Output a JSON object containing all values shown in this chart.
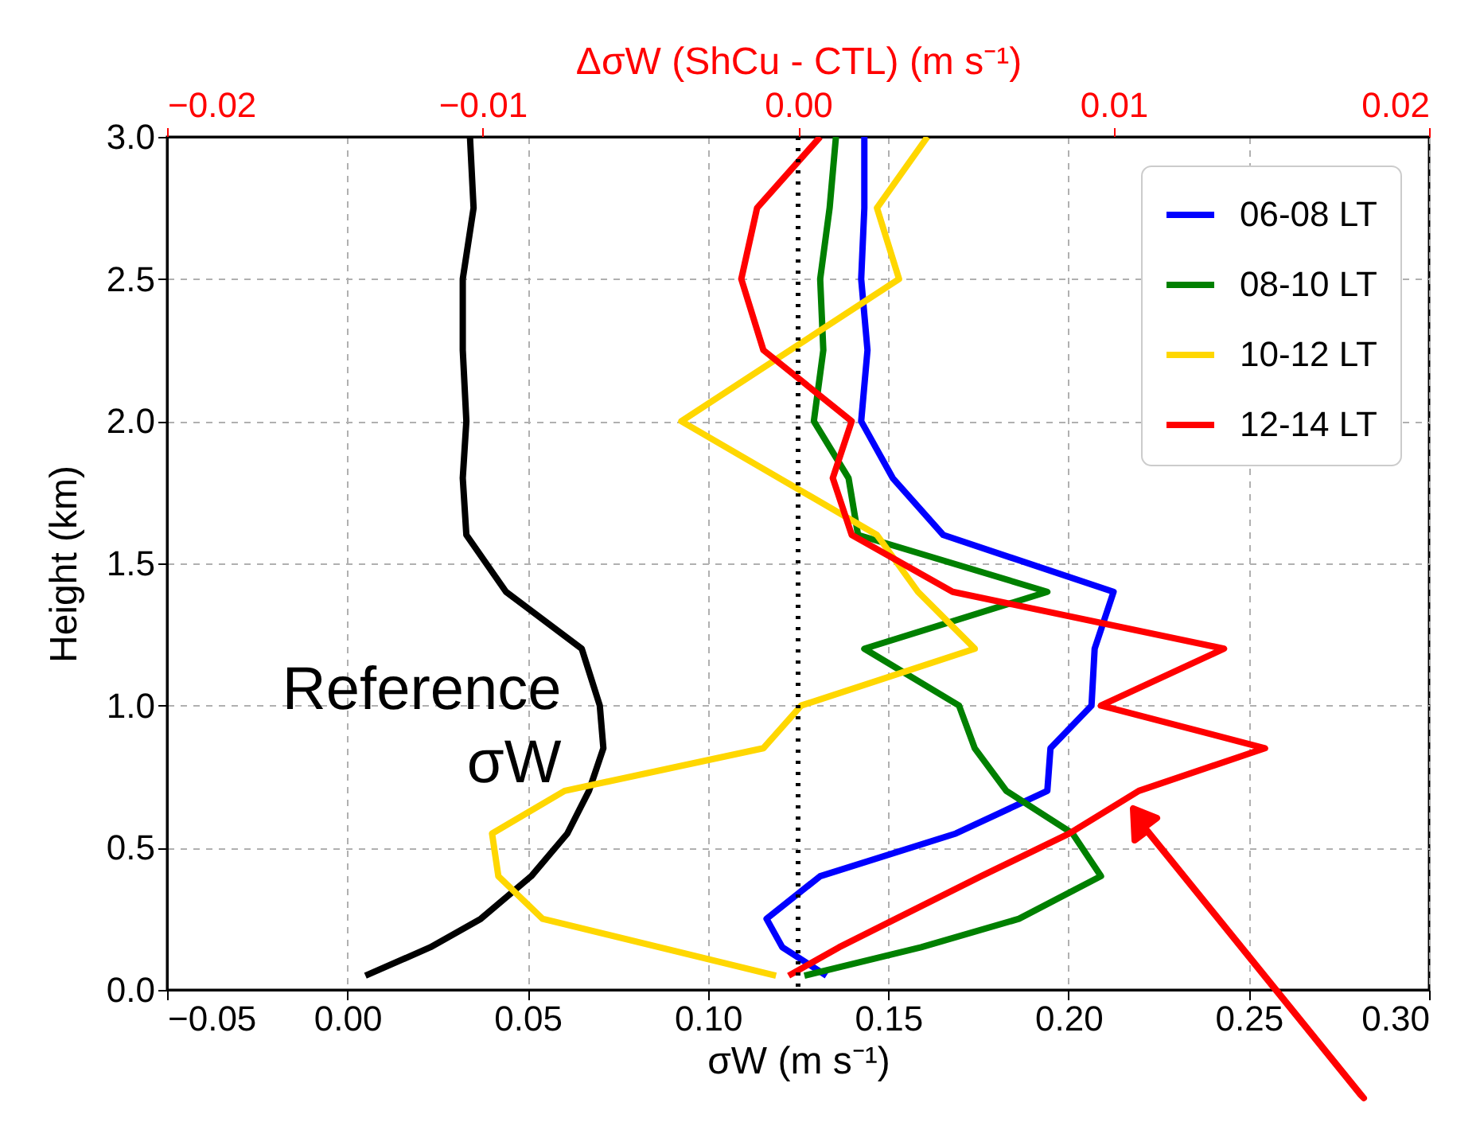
{
  "chart_data": {
    "type": "line",
    "xlabel": "σW (m s⁻¹)",
    "x2label": "ΔσW (ShCu - CTL) (m s⁻¹)",
    "ylabel": "Height (km)",
    "xlim": [
      -0.05,
      0.3
    ],
    "xticks": [
      {
        "value": -0.05,
        "label": "−0.05"
      },
      {
        "value": 0,
        "label": "0.00"
      },
      {
        "value": 0.05,
        "label": "0.05"
      },
      {
        "value": 0.1,
        "label": "0.10"
      },
      {
        "value": 0.15,
        "label": "0.15"
      },
      {
        "value": 0.2,
        "label": "0.20"
      },
      {
        "value": 0.25,
        "label": "0.25"
      },
      {
        "value": 0.3,
        "label": "0.30"
      }
    ],
    "x2lim": [
      -0.02,
      0.02
    ],
    "x2ticks": [
      {
        "value": -0.02,
        "label": "−0.02"
      },
      {
        "value": -0.01,
        "label": "−0.01"
      },
      {
        "value": 0,
        "label": "0.00"
      },
      {
        "value": 0.01,
        "label": "0.01"
      },
      {
        "value": 0.02,
        "label": "0.02"
      }
    ],
    "ylim": [
      0,
      3
    ],
    "yticks": [
      {
        "value": 0,
        "label": "0.0"
      },
      {
        "value": 0.5,
        "label": "0.5"
      },
      {
        "value": 1,
        "label": "1.0"
      },
      {
        "value": 1.5,
        "label": "1.5"
      },
      {
        "value": 2,
        "label": "2.0"
      },
      {
        "value": 2.5,
        "label": "2.5"
      },
      {
        "value": 3,
        "label": "3.0"
      }
    ],
    "grid": true,
    "legend": "top right",
    "ref_lines": [
      {
        "axis": "x2",
        "value": 0,
        "color": "#000000",
        "line_style": "dotted"
      }
    ],
    "series": [
      {
        "name": "Reference σW",
        "color": "#000000",
        "x": [
          0.005,
          0.023,
          0.037,
          0.051,
          0.061,
          0.067,
          0.071,
          0.07,
          0.065,
          0.044,
          0.033,
          0.032,
          0.033,
          0.032,
          0.032,
          0.035,
          0.034
        ],
        "values": [
          0.05,
          0.15,
          0.25,
          0.4,
          0.55,
          0.7,
          0.85,
          1.0,
          1.2,
          1.4,
          1.6,
          1.8,
          2.0,
          2.25,
          2.5,
          2.75,
          3.0
        ]
      },
      {
        "name": "06-08 LT",
        "color": "#0000ff",
        "axis": "x2",
        "x": [
          0.0009,
          -0.0005,
          -0.001,
          0.0007,
          0.005,
          0.0079,
          0.008,
          0.0093,
          0.0094,
          0.01,
          0.0046,
          0.003,
          0.002,
          0.0022,
          0.002,
          0.0021,
          0.0021
        ],
        "values": [
          0.05,
          0.15,
          0.25,
          0.4,
          0.55,
          0.7,
          0.85,
          1.0,
          1.2,
          1.4,
          1.6,
          1.8,
          2.0,
          2.25,
          2.5,
          2.75,
          3.0
        ]
      },
      {
        "name": "08-10 LT",
        "color": "#008000",
        "axis": "x2",
        "x": [
          0.0002,
          0.0039,
          0.007,
          0.0096,
          0.0087,
          0.0066,
          0.0056,
          0.0051,
          0.0021,
          0.0079,
          0.0019,
          0.0016,
          0.0005,
          0.0008,
          0.0007,
          0.001,
          0.0012
        ],
        "values": [
          0.05,
          0.15,
          0.25,
          0.4,
          0.55,
          0.7,
          0.85,
          1.0,
          1.2,
          1.4,
          1.6,
          1.8,
          2.0,
          2.25,
          2.5,
          2.75,
          3.0
        ]
      },
      {
        "name": "10-12 LT",
        "color": "#ffd700",
        "axis": "x2",
        "x": [
          -0.0007,
          -0.0081,
          -0.0095,
          -0.0097,
          -0.0074,
          -0.0011,
          0.0001,
          0.0056,
          0.0038,
          0.0025,
          -0.0037,
          0.0032,
          0.0025,
          0.0041
        ],
        "values": [
          0.05,
          0.25,
          0.4,
          0.55,
          0.7,
          0.85,
          1.0,
          1.2,
          1.4,
          1.6,
          2.0,
          2.5,
          2.75,
          3.0
        ]
      },
      {
        "name": "12-14 LT",
        "color": "#ff0000",
        "axis": "x2",
        "x": [
          -0.0003,
          0.0013,
          0.0031,
          0.0058,
          0.0086,
          0.0108,
          0.0148,
          0.0096,
          0.0135,
          0.0049,
          0.0017,
          0.0011,
          0.0017,
          -0.0011,
          -0.0018,
          -0.0013,
          0.0007
        ],
        "values": [
          0.05,
          0.15,
          0.25,
          0.4,
          0.55,
          0.7,
          0.85,
          1.0,
          1.2,
          1.4,
          1.6,
          1.8,
          2.0,
          2.25,
          2.5,
          2.75,
          3.0
        ]
      }
    ]
  }
}
